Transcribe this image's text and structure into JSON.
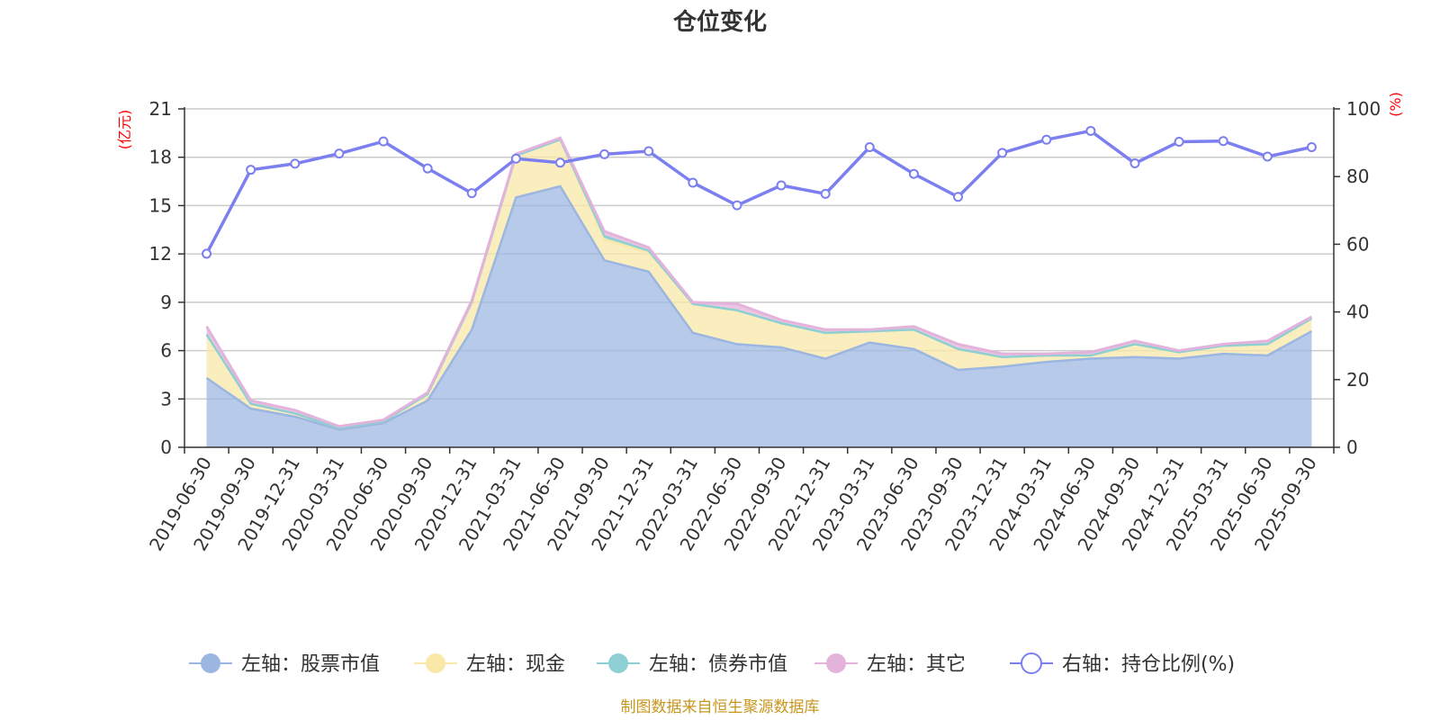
{
  "chart_data": {
    "type": "area",
    "title": "仓位变化",
    "left_axis": {
      "label": "(亿元)",
      "min": 0,
      "max": 21,
      "ticks": [
        0,
        3,
        6,
        9,
        12,
        15,
        18,
        21
      ]
    },
    "right_axis": {
      "label": "(%)",
      "min": 0,
      "max": 100,
      "ticks": [
        0,
        20,
        40,
        60,
        80,
        100
      ]
    },
    "categories": [
      "2019-06-30",
      "2019-09-30",
      "2019-12-31",
      "2020-03-31",
      "2020-06-30",
      "2020-09-30",
      "2020-12-31",
      "2021-03-31",
      "2021-06-30",
      "2021-09-30",
      "2021-12-31",
      "2022-03-31",
      "2022-06-30",
      "2022-09-30",
      "2022-12-31",
      "2023-03-31",
      "2023-06-30",
      "2023-09-30",
      "2023-12-31",
      "2024-03-31",
      "2024-06-30",
      "2024-09-30",
      "2024-12-31",
      "2025-03-31",
      "2025-06-30",
      "2025-09-30"
    ],
    "series": [
      {
        "name": "左轴：股票市值",
        "axis": "left",
        "color": "#9bb6e0",
        "values": [
          4.3,
          2.4,
          1.9,
          1.1,
          1.5,
          2.9,
          7.3,
          15.5,
          16.2,
          11.6,
          10.9,
          7.1,
          6.4,
          6.2,
          5.5,
          6.5,
          6.1,
          4.8,
          5.0,
          5.3,
          5.5,
          5.6,
          5.5,
          5.8,
          5.7,
          7.2
        ]
      },
      {
        "name": "左轴：现金",
        "axis": "left",
        "color": "#f9e8a8",
        "values": [
          2.7,
          0.3,
          0.2,
          0.1,
          0.1,
          0.4,
          1.7,
          2.6,
          2.9,
          1.3,
          1.2,
          1.8,
          2.1,
          1.5,
          1.6,
          0.7,
          1.2,
          1.3,
          0.6,
          0.4,
          0.2,
          0.8,
          0.4,
          0.5,
          0.7,
          0.8
        ]
      },
      {
        "name": "左轴：债券市值",
        "axis": "left",
        "color": "#8ecfd4",
        "values": [
          0,
          0,
          0,
          0,
          0,
          0,
          0,
          0,
          0,
          0.2,
          0.1,
          0,
          0,
          0,
          0,
          0,
          0,
          0,
          0,
          0,
          0,
          0,
          0,
          0,
          0,
          0
        ]
      },
      {
        "name": "左轴：其它",
        "axis": "left",
        "color": "#e3b3dc",
        "values": [
          0.5,
          0.2,
          0.2,
          0.1,
          0.1,
          0.1,
          0.1,
          0.1,
          0.1,
          0.3,
          0.2,
          0.1,
          0.4,
          0.2,
          0.2,
          0.1,
          0.2,
          0.3,
          0.2,
          0.1,
          0.2,
          0.2,
          0.1,
          0.1,
          0.2,
          0.1
        ]
      },
      {
        "name": "右轴：持仓比例(%)",
        "axis": "right",
        "color": "#7b7ff0",
        "type": "line",
        "values": [
          57.2,
          82.0,
          83.8,
          86.8,
          90.4,
          82.4,
          75.1,
          85.3,
          84.1,
          86.6,
          87.5,
          78.2,
          71.5,
          77.4,
          74.9,
          88.7,
          80.8,
          74.0,
          87.0,
          90.9,
          93.5,
          83.9,
          90.3,
          90.5,
          85.9,
          88.7
        ]
      }
    ]
  },
  "source_note": "制图数据来自恒生聚源数据库"
}
